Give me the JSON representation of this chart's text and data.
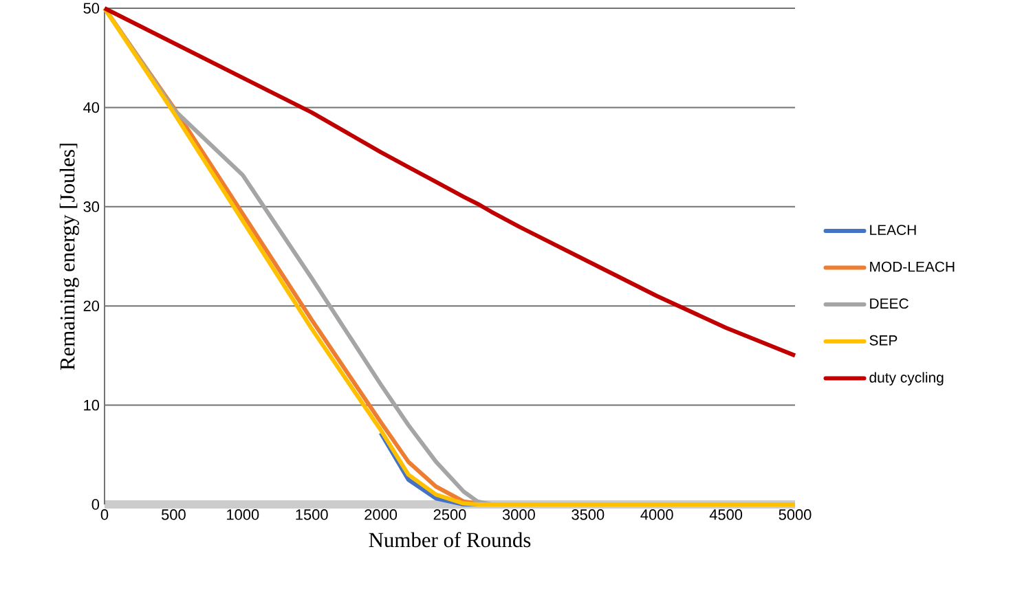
{
  "chart_data": {
    "type": "line",
    "xlabel": "Number of Rounds",
    "ylabel": "Remaining energy [Joules]",
    "x": [
      0,
      500,
      1000,
      1500,
      2000,
      2200,
      2400,
      2600,
      2700,
      2800,
      3000,
      3500,
      4000,
      4500,
      5000
    ],
    "series": [
      {
        "name": "LEACH",
        "color": "#4472c4",
        "values": [
          null,
          null,
          null,
          null,
          7.2,
          2.5,
          0.6,
          0,
          0,
          null,
          null,
          null,
          null,
          null,
          null
        ]
      },
      {
        "name": "MOD-LEACH",
        "color": "#ed7d31",
        "values": [
          50,
          40,
          29.3,
          18.6,
          8.3,
          4.3,
          1.8,
          0.3,
          0.1,
          0,
          null,
          null,
          null,
          null,
          null
        ]
      },
      {
        "name": "DEEC",
        "color": "#a5a5a5",
        "values": [
          50,
          39.8,
          33.2,
          22.8,
          12.1,
          8,
          4.3,
          1.3,
          0.3,
          0,
          0,
          0,
          0,
          0,
          0
        ]
      },
      {
        "name": "SEP",
        "color": "#ffc000",
        "values": [
          50,
          39.5,
          28.6,
          17.7,
          7.5,
          3,
          1,
          0.1,
          0,
          0,
          0,
          0,
          0,
          0,
          0
        ]
      },
      {
        "name": "duty cycling",
        "color": "#c00000",
        "values": [
          50,
          46.5,
          43,
          39.5,
          35.5,
          34,
          32.5,
          31,
          30.3,
          29.5,
          28,
          24.5,
          21,
          17.8,
          15
        ]
      }
    ],
    "xlim": [
      0,
      5000
    ],
    "ylim": [
      0,
      50
    ],
    "xticks": [
      0,
      500,
      1000,
      1500,
      2000,
      2500,
      3000,
      3500,
      4000,
      4500,
      5000
    ],
    "yticks": [
      0,
      10,
      20,
      30,
      40,
      50
    ],
    "grid": "y",
    "legend": "right"
  }
}
